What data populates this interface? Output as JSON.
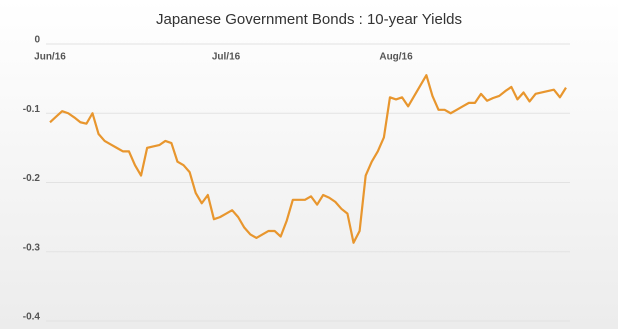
{
  "chart_data": {
    "type": "line",
    "title": "Japanese Government Bonds : 10-year Yields",
    "values": [
      -0.113,
      -0.105,
      -0.097,
      -0.1,
      -0.106,
      -0.113,
      -0.115,
      -0.1,
      -0.13,
      -0.14,
      -0.145,
      -0.15,
      -0.155,
      -0.155,
      -0.175,
      -0.19,
      -0.15,
      -0.148,
      -0.146,
      -0.14,
      -0.143,
      -0.17,
      -0.175,
      -0.185,
      -0.215,
      -0.23,
      -0.218,
      -0.253,
      -0.25,
      -0.245,
      -0.24,
      -0.25,
      -0.265,
      -0.275,
      -0.28,
      -0.275,
      -0.27,
      -0.27,
      -0.278,
      -0.255,
      -0.225,
      -0.225,
      -0.225,
      -0.22,
      -0.232,
      -0.218,
      -0.222,
      -0.228,
      -0.238,
      -0.245,
      -0.287,
      -0.27,
      -0.19,
      -0.17,
      -0.155,
      -0.135,
      -0.077,
      -0.08,
      -0.077,
      -0.09,
      -0.075,
      -0.06,
      -0.045,
      -0.075,
      -0.095,
      -0.095,
      -0.1,
      -0.095,
      -0.09,
      -0.085,
      -0.085,
      -0.072,
      -0.082,
      -0.078,
      -0.075,
      -0.068,
      -0.062,
      -0.08,
      -0.07,
      -0.083,
      -0.072,
      -0.07,
      -0.068,
      -0.066,
      -0.077,
      -0.063
    ],
    "color": "#e8962e",
    "xlim": [
      0,
      85
    ],
    "xticks": [
      {
        "value": 0,
        "label": "Jun/16"
      },
      {
        "value": 29,
        "label": "Jul/16"
      },
      {
        "value": 57,
        "label": "Aug/16"
      }
    ],
    "ylim": [
      -0.4,
      0
    ],
    "yticks": [
      0,
      -0.1,
      -0.2,
      -0.3,
      -0.4
    ],
    "grid": true
  }
}
